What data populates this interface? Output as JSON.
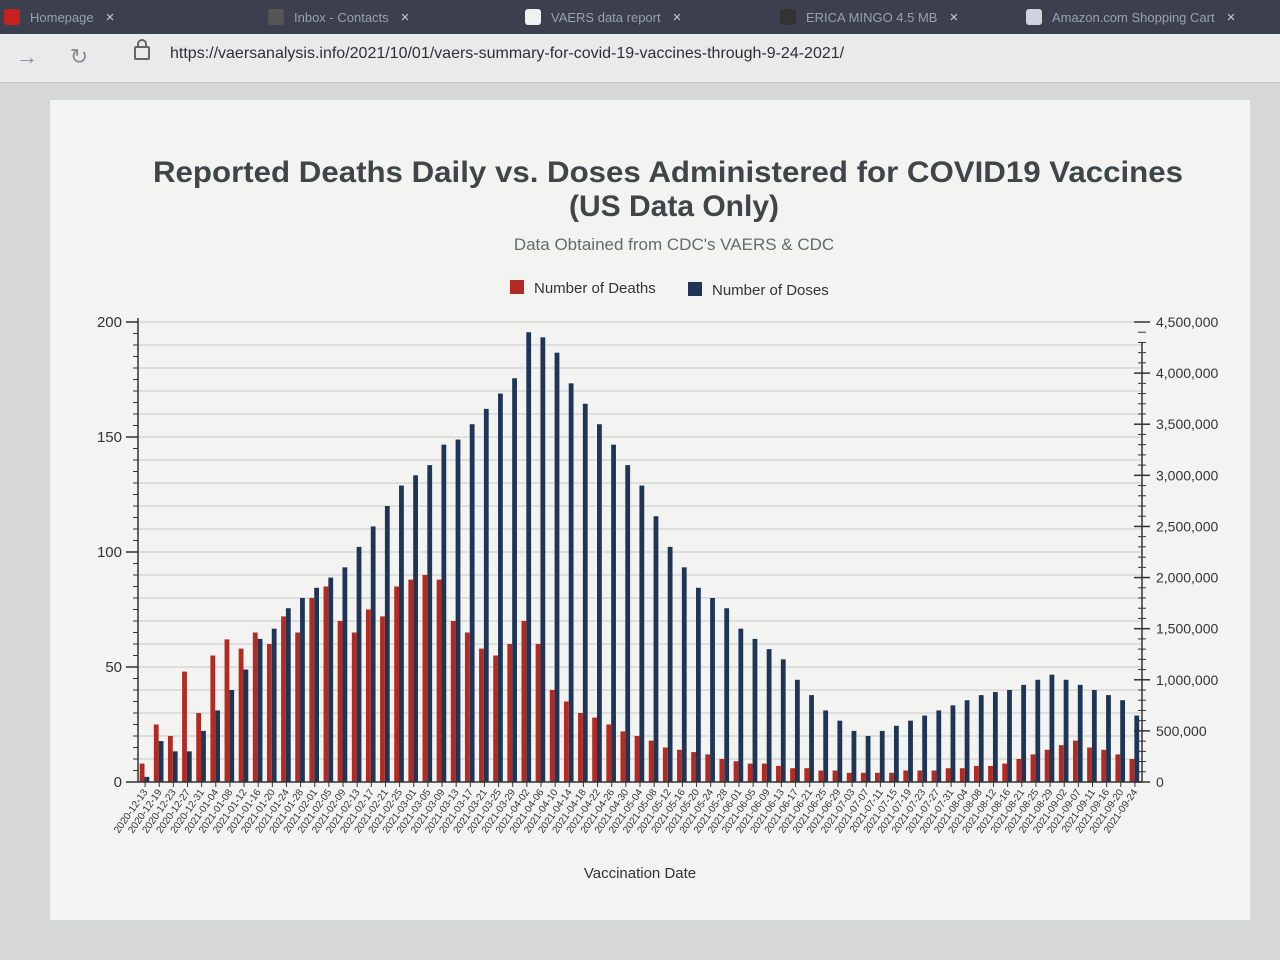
{
  "browser": {
    "tabs": [
      {
        "label": "Homepage",
        "icon": "gmail-icon",
        "color": "#c5221f",
        "left": 4
      },
      {
        "label": "Inbox - Contacts",
        "icon": "app-icon",
        "color": "#555555",
        "left": 268
      },
      {
        "label": "VAERS data report",
        "icon": "ida-icon",
        "color": "#f1f1f1",
        "left": 525
      },
      {
        "label": "ERICA MINGO 4.5 MB",
        "icon": "file-icon",
        "color": "#333333",
        "left": 780
      },
      {
        "label": "Amazon.com Shopping Cart",
        "icon": "amazon-icon",
        "color": "#cfd4dc",
        "left": 1026
      }
    ],
    "url": "https://vaersanalysis.info/2021/10/01/vaers-summary-for-covid-19-vaccines-through-9-24-2021/"
  },
  "chart_data": {
    "type": "bar",
    "title_line1": "Reported Deaths Daily vs. Doses Administered for COVID19 Vaccines",
    "title_line2": "(US Data Only)",
    "subtitle": "Data Obtained from CDC's VAERS & CDC",
    "xlabel": "Vaccination Date",
    "legend_position": "top-center",
    "colors": {
      "deaths": "#b22a22",
      "doses": "#1f3556",
      "grid": "#c8cac8"
    },
    "y_left": {
      "min": 0,
      "max": 200,
      "ticks": [
        0,
        50,
        100,
        150,
        200
      ],
      "tick_labels": [
        "0",
        "50",
        "100",
        "150",
        "200"
      ]
    },
    "y_right": {
      "min": 0,
      "max": 4500000,
      "ticks": [
        0,
        500000,
        1000000,
        1500000,
        2000000,
        2500000,
        3000000,
        3500000,
        4000000,
        4500000
      ],
      "tick_labels": [
        "0",
        "500,000",
        "1,000,000",
        "1,500,000",
        "2,000,000",
        "2,500,000",
        "3,000,000",
        "3,500,000",
        "4,000,000",
        "4,500,000"
      ]
    },
    "categories": [
      "2020-12-13",
      "2020-12-19",
      "2020-12-23",
      "2020-12-27",
      "2020-12-31",
      "2021-01-04",
      "2021-01-08",
      "2021-01-12",
      "2021-01-16",
      "2021-01-20",
      "2021-01-24",
      "2021-01-28",
      "2021-02-01",
      "2021-02-05",
      "2021-02-09",
      "2021-02-13",
      "2021-02-17",
      "2021-02-21",
      "2021-02-25",
      "2021-03-01",
      "2021-03-05",
      "2021-03-09",
      "2021-03-13",
      "2021-03-17",
      "2021-03-21",
      "2021-03-25",
      "2021-03-29",
      "2021-04-02",
      "2021-04-06",
      "2021-04-10",
      "2021-04-14",
      "2021-04-18",
      "2021-04-22",
      "2021-04-26",
      "2021-04-30",
      "2021-05-04",
      "2021-05-08",
      "2021-05-12",
      "2021-05-16",
      "2021-05-20",
      "2021-05-24",
      "2021-05-28",
      "2021-06-01",
      "2021-06-05",
      "2021-06-09",
      "2021-06-13",
      "2021-06-17",
      "2021-06-21",
      "2021-06-25",
      "2021-06-29",
      "2021-07-03",
      "2021-07-07",
      "2021-07-11",
      "2021-07-15",
      "2021-07-19",
      "2021-07-23",
      "2021-07-27",
      "2021-07-31",
      "2021-08-04",
      "2021-08-08",
      "2021-08-12",
      "2021-08-16",
      "2021-08-21",
      "2021-08-25",
      "2021-08-29",
      "2021-09-02",
      "2021-09-07",
      "2021-09-11",
      "2021-09-16",
      "2021-09-20",
      "2021-09-24"
    ],
    "series": [
      {
        "name": "Number of Deaths",
        "axis": "left",
        "values": [
          8,
          25,
          20,
          48,
          30,
          55,
          62,
          58,
          65,
          60,
          72,
          65,
          80,
          85,
          70,
          65,
          75,
          72,
          85,
          88,
          90,
          88,
          70,
          65,
          58,
          55,
          60,
          70,
          60,
          40,
          35,
          30,
          28,
          25,
          22,
          20,
          18,
          15,
          14,
          13,
          12,
          10,
          9,
          8,
          8,
          7,
          6,
          6,
          5,
          5,
          4,
          4,
          4,
          4,
          5,
          5,
          5,
          6,
          6,
          7,
          7,
          8,
          10,
          12,
          14,
          16,
          18,
          15,
          14,
          12,
          10
        ]
      },
      {
        "name": "Number of Doses",
        "axis": "right",
        "values": [
          50000,
          400000,
          300000,
          300000,
          500000,
          700000,
          900000,
          1100000,
          1400000,
          1500000,
          1700000,
          1800000,
          1900000,
          2000000,
          2100000,
          2300000,
          2500000,
          2700000,
          2900000,
          3000000,
          3100000,
          3300000,
          3350000,
          3500000,
          3650000,
          3800000,
          3950000,
          4400000,
          4350000,
          4200000,
          3900000,
          3700000,
          3500000,
          3300000,
          3100000,
          2900000,
          2600000,
          2300000,
          2100000,
          1900000,
          1800000,
          1700000,
          1500000,
          1400000,
          1300000,
          1200000,
          1000000,
          850000,
          700000,
          600000,
          500000,
          450000,
          500000,
          550000,
          600000,
          650000,
          700000,
          750000,
          800000,
          850000,
          880000,
          900000,
          950000,
          1000000,
          1050000,
          1000000,
          950000,
          900000,
          850000,
          800000,
          650000
        ]
      }
    ]
  }
}
